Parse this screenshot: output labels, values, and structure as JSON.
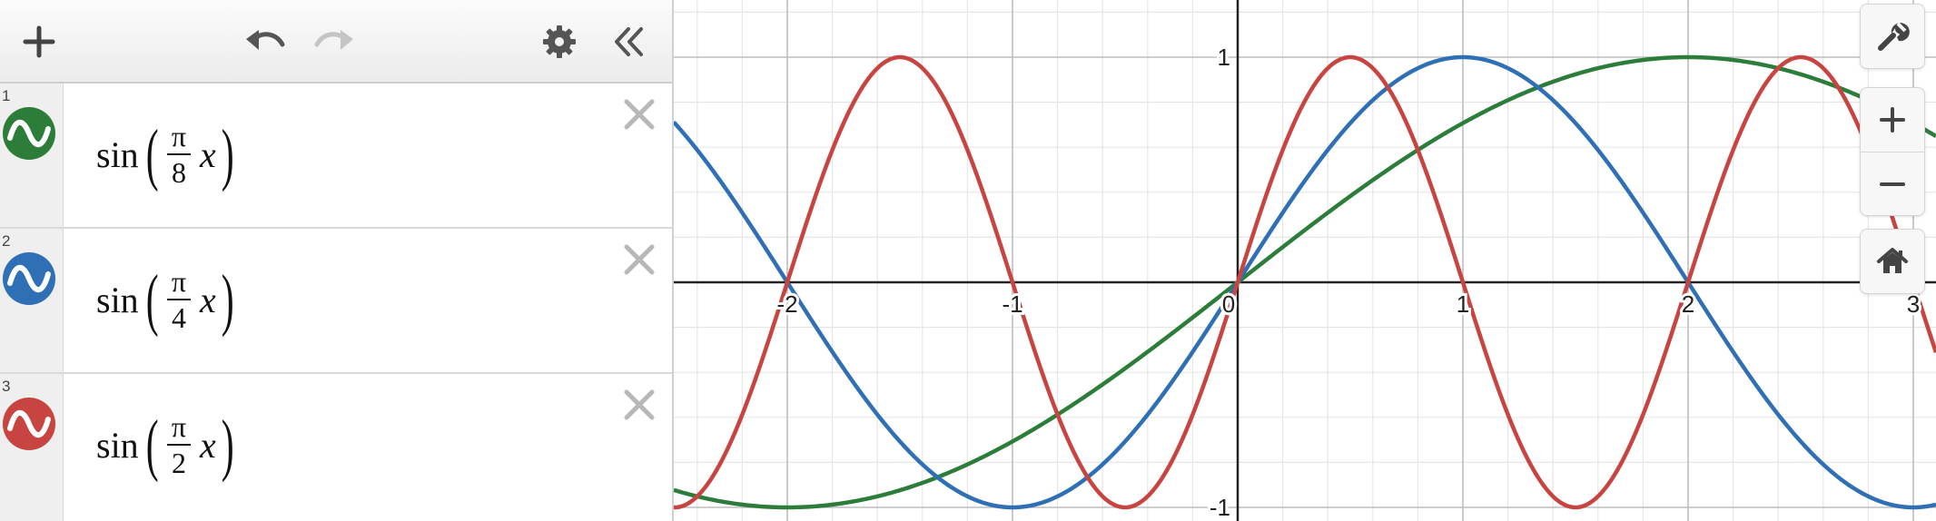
{
  "toolbar": {
    "icons": [
      "add-icon",
      "undo-icon",
      "redo-icon",
      "settings-icon",
      "collapse-icon"
    ]
  },
  "expressions": [
    {
      "index": "1",
      "fn": "sin",
      "numerator": "π",
      "denominator": "8",
      "variable": "x",
      "color": "#2d7d3a"
    },
    {
      "index": "2",
      "fn": "sin",
      "numerator": "π",
      "denominator": "4",
      "variable": "x",
      "color": "#2f6fb5"
    },
    {
      "index": "3",
      "fn": "sin",
      "numerator": "π",
      "denominator": "2",
      "variable": "x",
      "color": "#c74440"
    }
  ],
  "graph_controls": {
    "icons": [
      "wrench-icon",
      "zoom-in-icon",
      "zoom-out-icon",
      "home-icon"
    ]
  },
  "chart_data": {
    "type": "line",
    "x_range": [
      -2.5,
      3.1
    ],
    "y_range": [
      -1.0,
      1.25
    ],
    "x_ticks": [
      "-2",
      "-1",
      "0",
      "1",
      "2",
      "3"
    ],
    "y_ticks": [
      "1",
      "-1"
    ],
    "grid": true,
    "series": [
      {
        "expression": "sin(π/8 x)",
        "frequency": 0.125,
        "color": "#2d7d3a"
      },
      {
        "expression": "sin(π/4 x)",
        "frequency": 0.25,
        "color": "#2f6fb5"
      },
      {
        "expression": "sin(π/2 x)",
        "frequency": 0.5,
        "color": "#c74440"
      }
    ]
  }
}
